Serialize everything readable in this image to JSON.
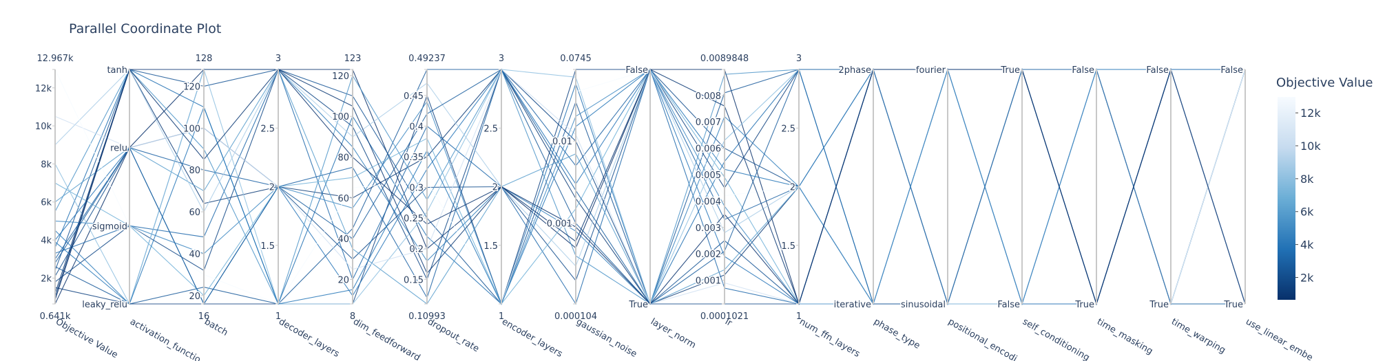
{
  "chart_data": {
    "type": "parcoords",
    "title": "Parallel Coordinate Plot",
    "colorbar": {
      "title": "Objective Value",
      "range": [
        641,
        12967
      ],
      "ticks": [
        {
          "value": 2000,
          "label": "2k"
        },
        {
          "value": 4000,
          "label": "4k"
        },
        {
          "value": 6000,
          "label": "6k"
        },
        {
          "value": 8000,
          "label": "8k"
        },
        {
          "value": 10000,
          "label": "10k"
        },
        {
          "value": 12000,
          "label": "12k"
        }
      ],
      "colorscale": [
        [
          0,
          "#08306b"
        ],
        [
          0.25,
          "#2171b5"
        ],
        [
          0.5,
          "#6baed6"
        ],
        [
          0.75,
          "#c6dbef"
        ],
        [
          1,
          "#f7fbff"
        ]
      ]
    },
    "dimensions": [
      {
        "label": "Objective Value",
        "range": [
          641,
          12967
        ],
        "ticks": [
          {
            "value": 641,
            "label": "0.641k"
          },
          {
            "value": 2000,
            "label": "2k"
          },
          {
            "value": 4000,
            "label": "4k"
          },
          {
            "value": 6000,
            "label": "6k"
          },
          {
            "value": 8000,
            "label": "8k"
          },
          {
            "value": 10000,
            "label": "10k"
          },
          {
            "value": 12000,
            "label": "12k"
          },
          {
            "value": 12967,
            "label": "12.967k"
          }
        ],
        "values": [
          641,
          1200,
          1500,
          1800,
          2100,
          2400,
          2600,
          3000,
          3300,
          3600,
          4000,
          4500,
          5000,
          5500,
          6000,
          7000,
          8000,
          9000,
          10500,
          12967,
          1000,
          2800,
          3900,
          850
        ]
      },
      {
        "label": "activation_functio",
        "categories": [
          "leaky_relu",
          "sigmoid",
          "relu",
          "tanh"
        ],
        "values": [
          "relu",
          "tanh",
          "leaky_relu",
          "sigmoid",
          "relu",
          "tanh",
          "leaky_relu",
          "relu",
          "sigmoid",
          "tanh",
          "relu",
          "leaky_relu",
          "sigmoid",
          "tanh",
          "relu",
          "sigmoid",
          "leaky_relu",
          "tanh",
          "relu",
          "sigmoid",
          "tanh",
          "relu",
          "leaky_relu",
          "tanh"
        ]
      },
      {
        "label": "batch",
        "range": [
          16,
          128
        ],
        "ticks": [
          16,
          20,
          40,
          60,
          80,
          100,
          120,
          128
        ],
        "values": [
          128,
          64,
          16,
          32,
          100,
          120,
          24,
          80,
          48,
          110,
          16,
          128,
          40,
          90,
          70,
          20,
          128,
          60,
          100,
          30,
          85,
          16,
          110,
          128
        ]
      },
      {
        "label": "decoder_layers",
        "range": [
          1,
          3
        ],
        "ticks": [
          1,
          1.5,
          2,
          2.5,
          3
        ],
        "values": [
          3,
          2,
          1,
          3,
          2,
          3,
          1,
          2,
          3,
          1,
          2,
          3,
          2,
          1,
          3,
          2,
          1,
          3,
          2,
          1,
          3,
          2,
          1,
          3
        ]
      },
      {
        "label": "dim_feedforward",
        "range": [
          8,
          123
        ],
        "ticks": [
          8,
          20,
          40,
          60,
          80,
          100,
          120,
          123
        ],
        "values": [
          123,
          60,
          8,
          95,
          30,
          110,
          45,
          75,
          20,
          100,
          12,
          85,
          55,
          120,
          35,
          70,
          8,
          90,
          25,
          65,
          105,
          40,
          15,
          80
        ]
      },
      {
        "label": "dropout_rate",
        "range": [
          0.10993,
          0.49237
        ],
        "ticks": [
          0.10993,
          0.15,
          0.2,
          0.25,
          0.3,
          0.35,
          0.4,
          0.45,
          0.49237
        ],
        "values": [
          0.2,
          0.35,
          0.45,
          0.15,
          0.3,
          0.25,
          0.49237,
          0.12,
          0.4,
          0.22,
          0.33,
          0.18,
          0.44,
          0.28,
          0.10993,
          0.38,
          0.26,
          0.47,
          0.2,
          0.31,
          0.16,
          0.42,
          0.36,
          0.24
        ]
      },
      {
        "label": "encoder_layers",
        "range": [
          1,
          3
        ],
        "ticks": [
          1,
          1.5,
          2,
          2.5,
          3
        ],
        "values": [
          2,
          3,
          1,
          3,
          2,
          1,
          3,
          3,
          2,
          1,
          3,
          2,
          1,
          3,
          2,
          1,
          3,
          2,
          3,
          1,
          2,
          3,
          1,
          2
        ]
      },
      {
        "label": "gaussian_noise",
        "range": [
          0.000104,
          0.0745
        ],
        "log": true,
        "ticks": [
          0.000104,
          0.001,
          0.01,
          0.0745
        ],
        "values": [
          0.0005,
          0.002,
          0.0745,
          0.01,
          0.0002,
          0.03,
          0.001,
          0.005,
          0.000104,
          0.05,
          0.003,
          0.0008,
          0.02,
          0.0004,
          0.007,
          0.0015,
          0.06,
          0.0003,
          0.012,
          0.04,
          0.0006,
          0.0025,
          0.015,
          0.0009
        ]
      },
      {
        "label": "layer_norm",
        "categories": [
          "True",
          "False"
        ],
        "values": [
          "False",
          "True",
          "False",
          "True",
          "False",
          "True",
          "True",
          "False",
          "False",
          "True",
          "False",
          "True",
          "False",
          "True",
          "True",
          "False",
          "True",
          "False",
          "True",
          "False",
          "False",
          "True",
          "False",
          "True"
        ]
      },
      {
        "label": "lr",
        "range": [
          0.0001021,
          0.0089848
        ],
        "ticks": [
          0.0001021,
          0.001,
          0.002,
          0.003,
          0.004,
          0.005,
          0.006,
          0.007,
          0.008,
          0.0089848
        ],
        "values": [
          0.0089848,
          0.0012,
          0.0045,
          0.0001021,
          0.006,
          0.0025,
          0.0081,
          0.0033,
          0.0007,
          0.0055,
          0.0019,
          0.0072,
          0.0038,
          0.0088,
          0.0014,
          0.0049,
          0.0063,
          0.0028,
          0.0009,
          0.0042,
          0.0076,
          0.0021,
          0.0052,
          0.0035
        ]
      },
      {
        "label": "num_ffn_layers",
        "range": [
          1,
          3
        ],
        "ticks": [
          1,
          1.5,
          2,
          2.5,
          3
        ],
        "values": [
          1,
          2,
          3,
          1,
          2,
          1,
          3,
          2,
          1,
          3,
          1,
          2,
          1,
          3,
          2,
          1,
          3,
          2,
          1,
          2,
          1,
          3,
          2,
          1
        ]
      },
      {
        "label": "phase_type",
        "categories": [
          "iterative",
          "2phase"
        ],
        "values": [
          "2phase",
          "iterative",
          "2phase",
          "2phase",
          "iterative",
          "2phase",
          "iterative",
          "2phase",
          "2phase",
          "iterative",
          "2phase",
          "2phase",
          "iterative",
          "2phase",
          "iterative",
          "2phase",
          "2phase",
          "iterative",
          "2phase",
          "iterative",
          "2phase",
          "2phase",
          "iterative",
          "2phase"
        ]
      },
      {
        "label": "positional_encodi",
        "categories": [
          "sinusoidal",
          "fourier"
        ],
        "values": [
          "fourier",
          "sinusoidal",
          "fourier",
          "sinusoidal",
          "fourier",
          "fourier",
          "sinusoidal",
          "fourier",
          "sinusoidal",
          "fourier",
          "fourier",
          "sinusoidal",
          "fourier",
          "sinusoidal",
          "fourier",
          "fourier",
          "sinusoidal",
          "fourier",
          "sinusoidal",
          "fourier",
          "fourier",
          "sinusoidal",
          "fourier",
          "fourier"
        ]
      },
      {
        "label": "self_conditioning",
        "categories": [
          "False",
          "True"
        ],
        "values": [
          "True",
          "False",
          "True",
          "True",
          "False",
          "True",
          "False",
          "True",
          "True",
          "False",
          "True",
          "False",
          "True",
          "True",
          "False",
          "True",
          "False",
          "True",
          "True",
          "False",
          "True",
          "True",
          "False",
          "True"
        ]
      },
      {
        "label": "time_masking",
        "categories": [
          "True",
          "False"
        ],
        "values": [
          "False",
          "True",
          "False",
          "True",
          "False",
          "False",
          "True",
          "False",
          "True",
          "False",
          "False",
          "True",
          "False",
          "True",
          "False",
          "True",
          "False",
          "False",
          "True",
          "False",
          "True",
          "False",
          "False",
          "True"
        ]
      },
      {
        "label": "time_warping",
        "categories": [
          "True",
          "False"
        ],
        "values": [
          "False",
          "False",
          "True",
          "False",
          "True",
          "False",
          "False",
          "True",
          "False",
          "True",
          "False",
          "False",
          "True",
          "False",
          "True",
          "False",
          "True",
          "False",
          "False",
          "True",
          "False",
          "True",
          "False",
          "False"
        ]
      },
      {
        "label": "use_linear_embe",
        "categories": [
          "True",
          "False"
        ],
        "values": [
          "False",
          "True",
          "False",
          "False",
          "True",
          "False",
          "True",
          "False",
          "False",
          "True",
          "False",
          "True",
          "False",
          "False",
          "True",
          "False",
          "True",
          "False",
          "True",
          "False",
          "False",
          "True",
          "False",
          "True"
        ]
      }
    ]
  }
}
